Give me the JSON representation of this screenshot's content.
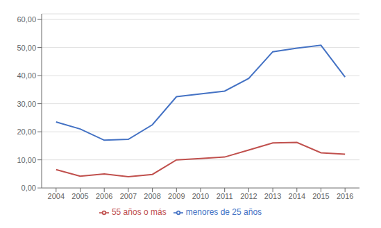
{
  "chart_data": {
    "type": "line",
    "x": [
      2004,
      2005,
      2006,
      2007,
      2008,
      2009,
      2010,
      2011,
      2012,
      2013,
      2014,
      2015,
      2016
    ],
    "series": [
      {
        "name": "menores de 25 años",
        "color": "#4472C4",
        "values": [
          23.5,
          21.0,
          17.0,
          17.3,
          22.5,
          32.5,
          33.5,
          34.5,
          39.0,
          48.5,
          49.8,
          50.8,
          39.5
        ]
      },
      {
        "name": "55 años o más",
        "color": "#C0504D",
        "values": [
          6.5,
          4.2,
          5.0,
          4.0,
          4.8,
          10.0,
          10.5,
          11.0,
          13.5,
          16.0,
          16.2,
          12.5,
          12.0
        ]
      }
    ],
    "xlim": [
      2003.4,
      2016.6
    ],
    "xticks": [
      2004,
      2005,
      2006,
      2007,
      2008,
      2009,
      2010,
      2011,
      2012,
      2013,
      2014,
      2015,
      2016
    ],
    "ylim": [
      0,
      62
    ],
    "yticks": [
      {
        "value": 0,
        "label": "0,00"
      },
      {
        "value": 10,
        "label": "10,00"
      },
      {
        "value": 20,
        "label": "20,00"
      },
      {
        "value": 30,
        "label": "30,00"
      },
      {
        "value": 40,
        "label": "40,00"
      },
      {
        "value": 50,
        "label": "50,00"
      },
      {
        "value": 60,
        "label": "60,00"
      }
    ],
    "grid": "y",
    "legend": "bottom"
  }
}
